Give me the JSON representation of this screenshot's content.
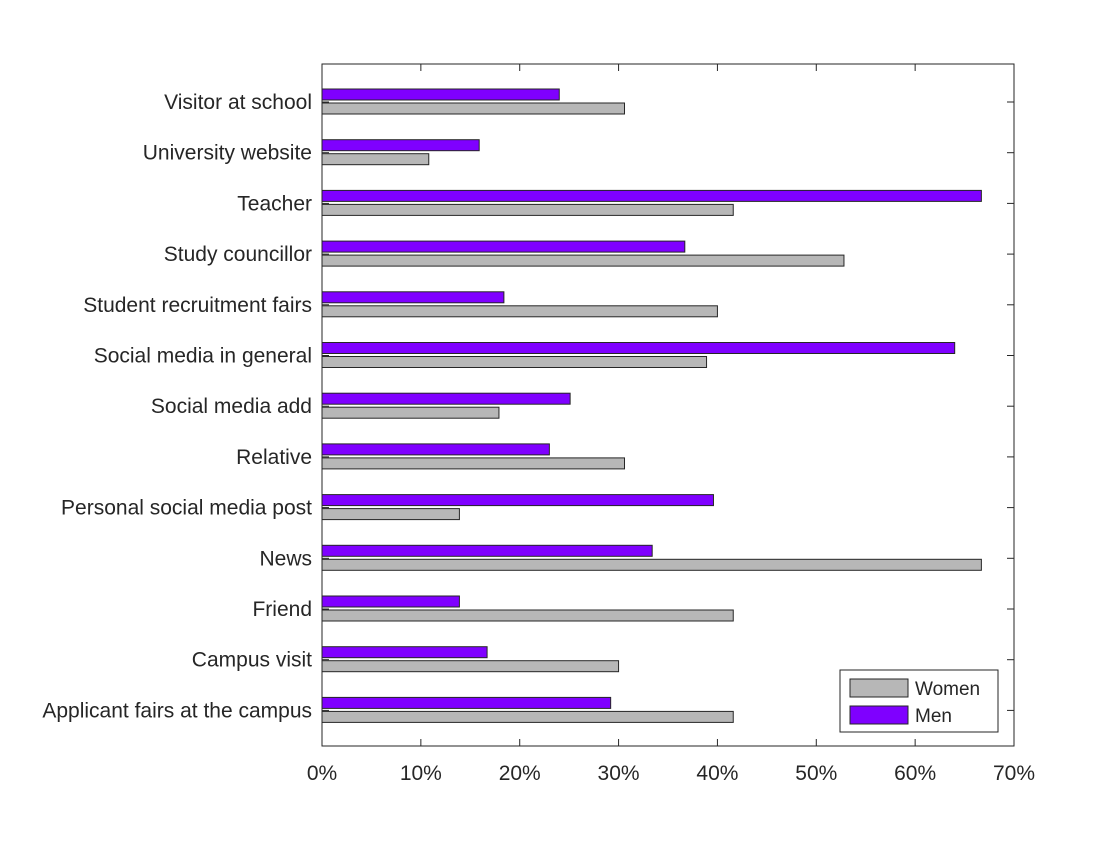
{
  "chart_data": {
    "type": "bar",
    "orientation": "horizontal",
    "title": "",
    "xlabel": "",
    "ylabel": "",
    "xlim": [
      0,
      70
    ],
    "xticks": [
      "0%",
      "10%",
      "20%",
      "30%",
      "40%",
      "50%",
      "60%",
      "70%"
    ],
    "xtick_values": [
      0,
      10,
      20,
      30,
      40,
      50,
      60,
      70
    ],
    "grid": false,
    "legend_position": "bottom-right",
    "categories": [
      "Visitor at school",
      "University website",
      "Teacher",
      "Study councillor",
      "Student recruitment fairs",
      "Social media in general",
      "Social media add",
      "Relative",
      "Personal social media post",
      "News",
      "Friend",
      "Campus visit",
      "Applicant fairs at the campus"
    ],
    "series": [
      {
        "name": "Women",
        "color": "#b7b7b7",
        "values": [
          30.6,
          10.8,
          41.6,
          52.8,
          40.0,
          38.9,
          17.9,
          30.6,
          13.9,
          66.7,
          41.6,
          30.0,
          41.6
        ]
      },
      {
        "name": "Men",
        "color": "#7f00ff",
        "values": [
          24.0,
          15.9,
          66.7,
          36.7,
          18.4,
          64.0,
          25.1,
          23.0,
          39.6,
          33.4,
          13.9,
          16.7,
          29.2
        ]
      }
    ]
  }
}
